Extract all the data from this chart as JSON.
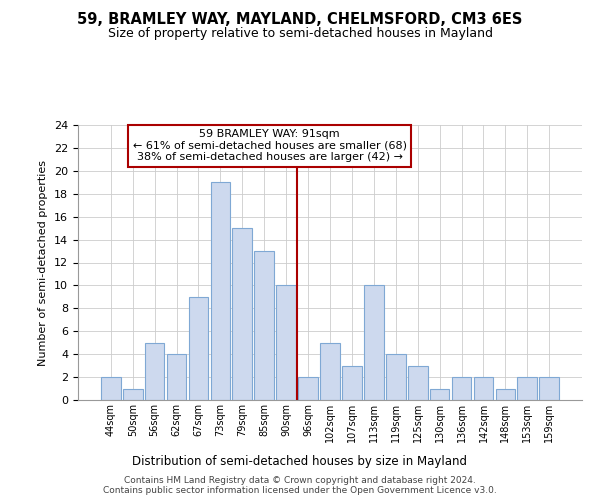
{
  "title": "59, BRAMLEY WAY, MAYLAND, CHELMSFORD, CM3 6ES",
  "subtitle": "Size of property relative to semi-detached houses in Mayland",
  "xlabel": "Distribution of semi-detached houses by size in Mayland",
  "ylabel": "Number of semi-detached properties",
  "bar_labels": [
    "44sqm",
    "50sqm",
    "56sqm",
    "62sqm",
    "67sqm",
    "73sqm",
    "79sqm",
    "85sqm",
    "90sqm",
    "96sqm",
    "102sqm",
    "107sqm",
    "113sqm",
    "119sqm",
    "125sqm",
    "130sqm",
    "136sqm",
    "142sqm",
    "148sqm",
    "153sqm",
    "159sqm"
  ],
  "bar_values": [
    2,
    1,
    5,
    4,
    9,
    19,
    15,
    13,
    10,
    2,
    5,
    3,
    10,
    4,
    3,
    1,
    2,
    2,
    1,
    2,
    2
  ],
  "bar_color": "#cdd9ee",
  "bar_edge_color": "#7fa8d4",
  "vline_x": 8.5,
  "vline_color": "#aa0000",
  "annotation_text_line1": "59 BRAMLEY WAY: 91sqm",
  "annotation_text_line2": "← 61% of semi-detached houses are smaller (68)",
  "annotation_text_line3": "38% of semi-detached houses are larger (42) →",
  "ylim": [
    0,
    24
  ],
  "yticks": [
    0,
    2,
    4,
    6,
    8,
    10,
    12,
    14,
    16,
    18,
    20,
    22,
    24
  ],
  "background_color": "#ffffff",
  "grid_color": "#cccccc",
  "footer_line1": "Contains HM Land Registry data © Crown copyright and database right 2024.",
  "footer_line2": "Contains public sector information licensed under the Open Government Licence v3.0."
}
